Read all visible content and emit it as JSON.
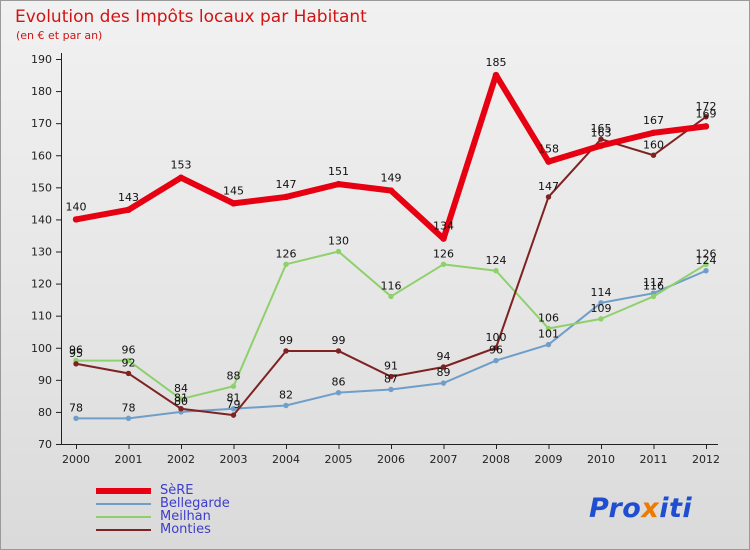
{
  "header": {
    "title": "Evolution des Impôts locaux par Habitant",
    "subtitle": "(en € et par an)"
  },
  "chart_data": {
    "type": "line",
    "x": [
      2000,
      2001,
      2002,
      2003,
      2004,
      2005,
      2006,
      2007,
      2008,
      2009,
      2010,
      2011,
      2012
    ],
    "ylim": [
      70,
      190
    ],
    "ytick_step": 10,
    "grid": false,
    "legend_position": "bottom-left",
    "series": [
      {
        "name": "SèRE",
        "color": "#e60012",
        "width": 6,
        "values": [
          140,
          143,
          153,
          145,
          147,
          151,
          149,
          134,
          185,
          158,
          163,
          167,
          169
        ]
      },
      {
        "name": "Bellegarde",
        "color": "#6f9ec9",
        "width": 2,
        "values": [
          78,
          78,
          80,
          81,
          82,
          86,
          87,
          89,
          96,
          101,
          114,
          117,
          124
        ]
      },
      {
        "name": "Meilhan",
        "color": "#8ed06c",
        "width": 2,
        "values": [
          96,
          96,
          84,
          88,
          126,
          130,
          116,
          126,
          124,
          106,
          109,
          116,
          126
        ]
      },
      {
        "name": "Monties",
        "color": "#7e2222",
        "width": 2,
        "values": [
          95,
          92,
          81,
          79,
          99,
          99,
          91,
          94,
          100,
          147,
          165,
          160,
          172
        ]
      }
    ]
  },
  "logo": {
    "parts": [
      {
        "t": "Pro",
        "c": "#1f4fd0"
      },
      {
        "t": "x",
        "c": "#ef7a00"
      },
      {
        "t": "iti",
        "c": "#1f4fd0"
      }
    ]
  }
}
